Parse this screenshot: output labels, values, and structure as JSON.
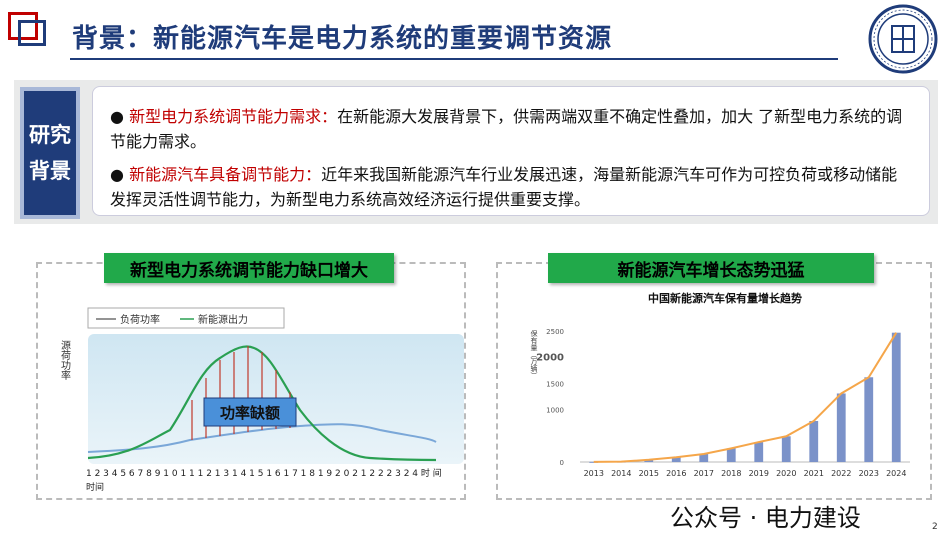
{
  "header": {
    "title": "背景：新能源汽车是电力系统的重要调节资源",
    "accent_color": "#1f3c7a",
    "brand_red": "#c00000"
  },
  "side_label": {
    "line1": "研究",
    "line2": "背景"
  },
  "bullets": [
    {
      "highlight": "新型电力系统调节能力需求：",
      "text": "在新能源大发展背景下，供需两端双重不确定性叠加，加大 了新型电力系统的调节能力需求。"
    },
    {
      "highlight": "新能源汽车具备调节能力：",
      "text": "近年来我国新能源汽车行业发展迅速，海量新能源汽车可作为可控负荷或移动储能发挥灵活性调节能力，为新型电力系统高效经济运行提供重要支撑。"
    }
  ],
  "left_chart": {
    "banner": "新型电力系统调节能力缺口增大",
    "legend_load": "负荷功率",
    "legend_renew": "新能源出力",
    "ylabel": "源荷功率",
    "gap_label": "功率缺额",
    "xlabel": "时间",
    "xtick_text": "1 2 3 4 5 6 7 8 9 1 0 1 1 1 2 1 3 1 4 1 5 1 6 1 7 1 8 1 9 2 0 2 1 2 2 2 3 2 4  时 间"
  },
  "chart_data": {
    "type": "bar",
    "title": "中国新能源汽车保有量增长趋势",
    "ylabel": "保有量（万辆）",
    "categories": [
      "2013",
      "2014",
      "2015",
      "2016",
      "2017",
      "2018",
      "2019",
      "2020",
      "2021",
      "2022",
      "2023",
      "2024"
    ],
    "values": [
      3,
      8,
      42,
      91,
      153,
      261,
      381,
      492,
      784,
      1310,
      1620,
      2472
    ],
    "yticks": [
      0,
      1000,
      1500,
      2000,
      2500
    ],
    "ylim": [
      0,
      2600
    ],
    "bar_color": "#7b92c9",
    "line_color": "#f5a64a"
  },
  "footer": {
    "watermark": "公众号 · 电力建设",
    "page": "2"
  }
}
